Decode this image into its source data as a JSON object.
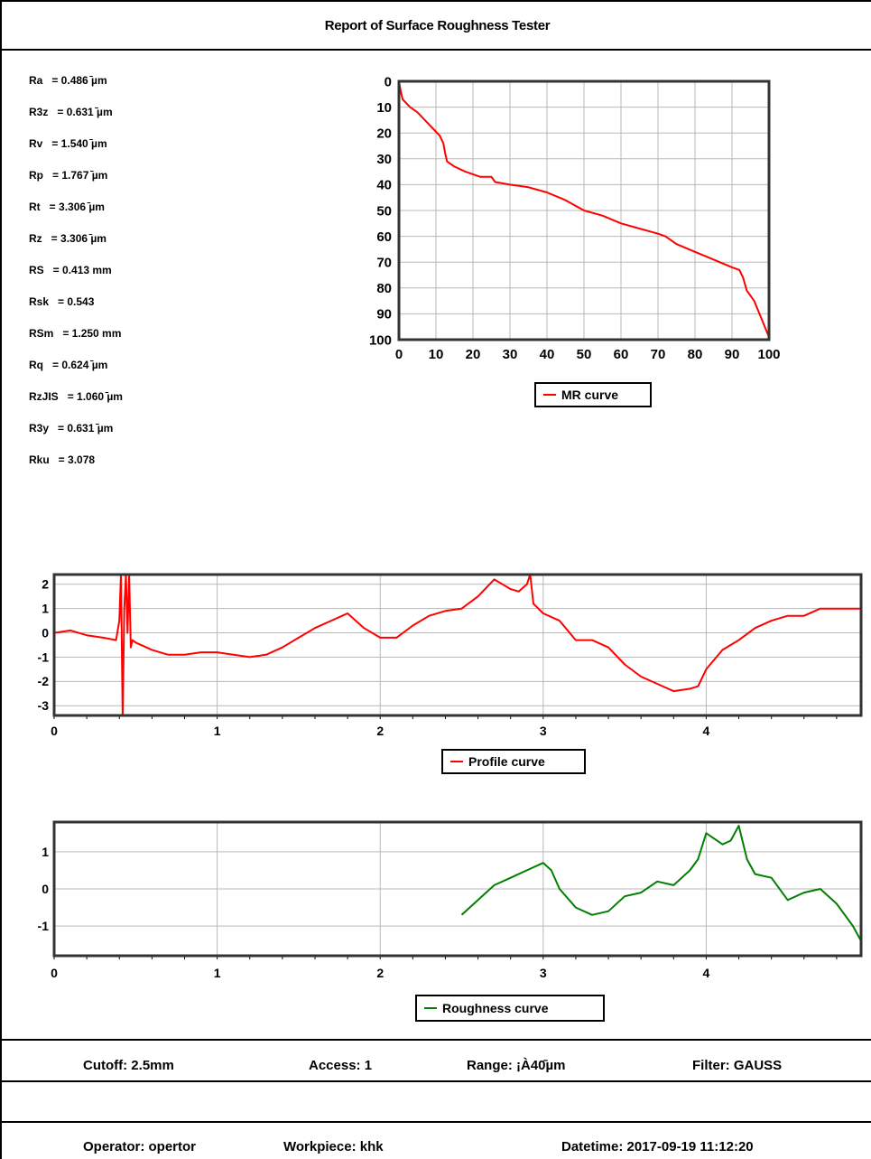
{
  "title": "Report of Surface Roughness Tester",
  "parameters": [
    {
      "name": "Ra",
      "value": "= 0.486 ̄µm"
    },
    {
      "name": "R3z",
      "value": "= 0.631 ̄µm"
    },
    {
      "name": "Rv",
      "value": "= 1.540 ̄µm"
    },
    {
      "name": "Rp",
      "value": "= 1.767 ̄µm"
    },
    {
      "name": "Rt",
      "value": "= 3.306 ̄µm"
    },
    {
      "name": "Rz",
      "value": "= 3.306 ̄µm"
    },
    {
      "name": "RS",
      "value": "= 0.413 mm"
    },
    {
      "name": "Rsk",
      "value": "= 0.543"
    },
    {
      "name": "RSm",
      "value": "= 1.250 mm"
    },
    {
      "name": "Rq",
      "value": "= 0.624 ̄µm"
    },
    {
      "name": "RzJIS",
      "value": "= 1.060 ̄µm"
    },
    {
      "name": "R3y",
      "value": "= 0.631 ̄µm"
    },
    {
      "name": "Rku",
      "value": "= 3.078"
    }
  ],
  "chart_data": [
    {
      "type": "line",
      "legend": "MR curve",
      "color": "#ff0000",
      "xlim": [
        0,
        100
      ],
      "ylim": [
        0,
        100
      ],
      "y_inverted": true,
      "grid": true,
      "x_ticks": [
        "0",
        "10",
        "20",
        "30",
        "40",
        "50",
        "60",
        "70",
        "80",
        "90",
        "100"
      ],
      "y_ticks": [
        "0",
        "10",
        "20",
        "30",
        "40",
        "50",
        "60",
        "70",
        "80",
        "90",
        "100"
      ],
      "x": [
        0,
        0.5,
        1,
        3,
        5,
        7,
        9,
        11,
        12,
        12.5,
        13,
        15,
        18,
        22,
        25,
        26,
        30,
        35,
        40,
        45,
        50,
        55,
        60,
        65,
        70,
        72,
        75,
        80,
        85,
        90,
        92,
        93,
        94,
        96,
        98,
        100
      ],
      "y": [
        0,
        4,
        7,
        10,
        12,
        15,
        18,
        21,
        24,
        28,
        31,
        33,
        35,
        37,
        37,
        39,
        40,
        41,
        43,
        46,
        50,
        52,
        55,
        57,
        59,
        60,
        63,
        66,
        69,
        72,
        73,
        76,
        81,
        85,
        92,
        99
      ]
    },
    {
      "type": "line",
      "legend": "Profile curve",
      "color": "#ff0000",
      "xlim": [
        0,
        4.95
      ],
      "ylim": [
        -3.4,
        2.4
      ],
      "grid": true,
      "x_ticks": [
        "0",
        "1",
        "2",
        "3",
        "4"
      ],
      "y_ticks": [
        "2",
        "1",
        "0",
        "-1",
        "-2",
        "-3"
      ],
      "x": [
        0,
        0.1,
        0.2,
        0.3,
        0.38,
        0.4,
        0.41,
        0.42,
        0.43,
        0.44,
        0.45,
        0.46,
        0.47,
        0.48,
        0.5,
        0.6,
        0.7,
        0.8,
        0.9,
        1.0,
        1.1,
        1.2,
        1.3,
        1.4,
        1.5,
        1.6,
        1.7,
        1.8,
        1.9,
        2.0,
        2.1,
        2.2,
        2.3,
        2.4,
        2.5,
        2.6,
        2.7,
        2.75,
        2.8,
        2.85,
        2.9,
        2.92,
        2.94,
        3.0,
        3.1,
        3.2,
        3.3,
        3.4,
        3.5,
        3.6,
        3.7,
        3.8,
        3.9,
        3.95,
        4.0,
        4.1,
        4.2,
        4.3,
        4.4,
        4.5,
        4.6,
        4.7,
        4.8,
        4.9,
        4.95
      ],
      "y": [
        0,
        0.1,
        -0.1,
        -0.2,
        -0.3,
        0.5,
        2.4,
        -3.4,
        1.0,
        2.4,
        0.0,
        2.4,
        -0.6,
        -0.3,
        -0.4,
        -0.7,
        -0.9,
        -0.9,
        -0.8,
        -0.8,
        -0.9,
        -1.0,
        -0.9,
        -0.6,
        -0.2,
        0.2,
        0.5,
        0.8,
        0.2,
        -0.2,
        -0.2,
        0.3,
        0.7,
        0.9,
        1.0,
        1.5,
        2.2,
        2.0,
        1.8,
        1.7,
        2.0,
        2.4,
        1.2,
        0.8,
        0.5,
        -0.3,
        -0.3,
        -0.6,
        -1.3,
        -1.8,
        -2.1,
        -2.4,
        -2.3,
        -2.2,
        -1.5,
        -0.7,
        -0.3,
        0.2,
        0.5,
        0.7,
        0.7,
        1.0,
        1.0,
        1.0,
        1.0
      ]
    },
    {
      "type": "line",
      "legend": "Roughness curve",
      "color": "#008000",
      "xlim": [
        0,
        4.95
      ],
      "ylim": [
        -1.8,
        1.8
      ],
      "grid": true,
      "x_ticks": [
        "0",
        "1",
        "2",
        "3",
        "4"
      ],
      "y_ticks": [
        "1",
        "0",
        "-1"
      ],
      "x": [
        2.5,
        2.6,
        2.7,
        2.8,
        2.9,
        3.0,
        3.05,
        3.1,
        3.2,
        3.3,
        3.4,
        3.5,
        3.6,
        3.7,
        3.8,
        3.9,
        3.95,
        4.0,
        4.1,
        4.15,
        4.2,
        4.25,
        4.3,
        4.4,
        4.5,
        4.6,
        4.7,
        4.8,
        4.9,
        4.95
      ],
      "y": [
        -0.7,
        -0.3,
        0.1,
        0.3,
        0.5,
        0.7,
        0.5,
        0.0,
        -0.5,
        -0.7,
        -0.6,
        -0.2,
        -0.1,
        0.2,
        0.1,
        0.5,
        0.8,
        1.5,
        1.2,
        1.3,
        1.7,
        0.8,
        0.4,
        0.3,
        -0.3,
        -0.1,
        0.0,
        -0.4,
        -1.0,
        -1.4
      ]
    }
  ],
  "footer": {
    "cutoff": "Cutoff: 2.5mm",
    "access": "Access: 1",
    "range": "Range: ¡À40̄µm",
    "filter": "Filter: GAUSS",
    "operator": "Operator: opertor",
    "workpiece": "Workpiece: khk",
    "datetime": "Datetime: 2017-09-19 11:12:20"
  }
}
